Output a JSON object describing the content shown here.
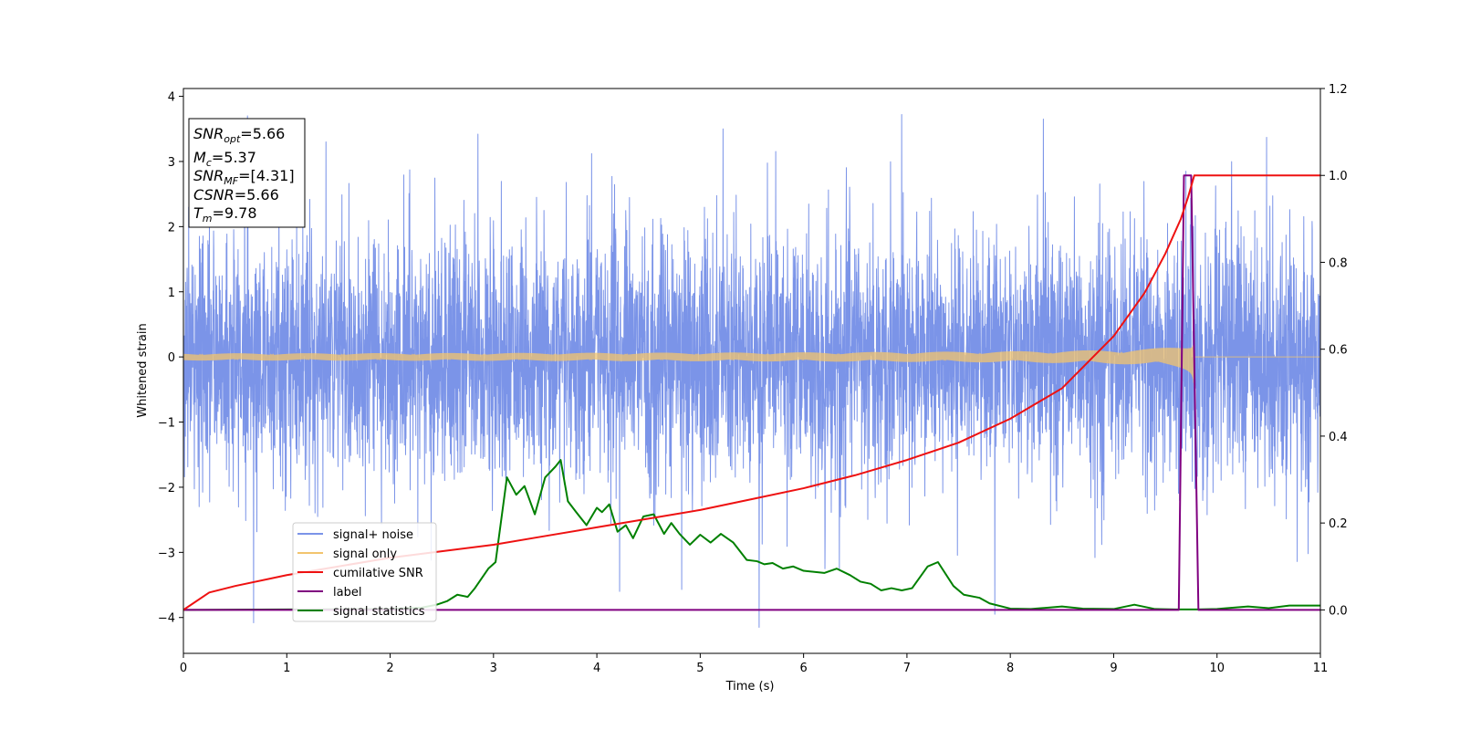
{
  "chart_data": {
    "type": "line",
    "title": "",
    "xlabel": "Time (s)",
    "ylabel": "Whitened strain",
    "xlim": [
      0,
      11
    ],
    "ylim": [
      -4.55,
      4.12
    ],
    "y2lim": [
      -0.1,
      1.2
    ],
    "grid": false,
    "x_ticks": [
      "0",
      "1",
      "2",
      "3",
      "4",
      "5",
      "6",
      "7",
      "8",
      "9",
      "10",
      "11"
    ],
    "y_ticks": [
      "4",
      "3",
      "2",
      "1",
      "0",
      "−1",
      "−2",
      "−3",
      "−4"
    ],
    "y2_ticks": [
      "1.2",
      "1.0",
      "0.8",
      "0.6",
      "0.4",
      "0.2",
      "0.0"
    ],
    "annotation": {
      "snr_opt": {
        "name": "SNR",
        "sub": "opt",
        "value": "=5.66"
      },
      "mc": {
        "name": "M",
        "sub": "c",
        "value": "=5.37"
      },
      "snr_mf": {
        "name": "SNR",
        "sub": "MF",
        "value": "=[4.31]"
      },
      "csnr": {
        "name": "CSNR",
        "sub": "",
        "value": "=5.66"
      },
      "tm": {
        "name": "T",
        "sub": "m",
        "value": "=9.78"
      }
    },
    "legend_location": "lower-left",
    "series": [
      {
        "name": "signal+ noise",
        "color": "#7b94e8",
        "axis": "left",
        "kind": "noise",
        "sigma": 0.95,
        "extreme_peaks": [
          [
            0.05,
            2.3
          ],
          [
            0.62,
            3.7
          ],
          [
            0.68,
            -4.08
          ],
          [
            1.38,
            3.3
          ],
          [
            2.85,
            3.42
          ],
          [
            3.95,
            3.12
          ],
          [
            4.22,
            -3.6
          ],
          [
            4.82,
            -3.57
          ],
          [
            5.22,
            3.5
          ],
          [
            5.57,
            -4.15
          ],
          [
            6.95,
            3.72
          ],
          [
            7.85,
            -3.95
          ],
          [
            8.32,
            3.65
          ],
          [
            9.7,
            2.85
          ],
          [
            10.48,
            3.37
          ]
        ]
      },
      {
        "name": "signal only",
        "color": "#f2c46e",
        "axis": "left",
        "kind": "chirp",
        "t_merge": 9.78
      },
      {
        "name": "cumilative SNR",
        "color": "#ee1111",
        "axis": "right",
        "x": [
          0,
          0.25,
          0.5,
          1,
          1.5,
          2,
          2.5,
          3,
          3.5,
          4,
          4.5,
          5,
          5.5,
          6,
          6.5,
          7,
          7.5,
          8,
          8.5,
          9,
          9.3,
          9.5,
          9.65,
          9.72,
          9.78,
          11
        ],
        "y": [
          0.0,
          0.04,
          0.055,
          0.08,
          0.1,
          0.12,
          0.135,
          0.15,
          0.17,
          0.19,
          0.21,
          0.23,
          0.255,
          0.28,
          0.31,
          0.345,
          0.385,
          0.44,
          0.51,
          0.63,
          0.73,
          0.82,
          0.9,
          0.95,
          1.0,
          1.0
        ]
      },
      {
        "name": "label",
        "color": "#800080",
        "axis": "right",
        "x": [
          0,
          9.63,
          9.68,
          9.75,
          9.82,
          11
        ],
        "y": [
          0,
          0,
          1,
          1,
          0,
          0
        ]
      },
      {
        "name": "signal statistics",
        "color": "#008000",
        "axis": "right",
        "x": [
          0,
          1,
          2,
          2.3,
          2.45,
          2.55,
          2.65,
          2.75,
          2.82,
          2.95,
          3.02,
          3.13,
          3.22,
          3.3,
          3.4,
          3.5,
          3.6,
          3.65,
          3.72,
          3.8,
          3.9,
          4.0,
          4.05,
          4.12,
          4.2,
          4.28,
          4.35,
          4.45,
          4.55,
          4.65,
          4.72,
          4.8,
          4.9,
          5.0,
          5.1,
          5.2,
          5.32,
          5.45,
          5.55,
          5.62,
          5.7,
          5.8,
          5.9,
          6.0,
          6.2,
          6.32,
          6.45,
          6.55,
          6.65,
          6.75,
          6.85,
          6.95,
          7.05,
          7.2,
          7.3,
          7.45,
          7.55,
          7.7,
          7.8,
          8.0,
          8.2,
          8.5,
          8.7,
          9.0,
          9.2,
          9.4,
          9.6,
          9.8,
          10.0,
          10.3,
          10.5,
          10.7,
          11
        ],
        "y": [
          0,
          0.001,
          0.002,
          0.005,
          0.012,
          0.02,
          0.035,
          0.03,
          0.05,
          0.095,
          0.11,
          0.305,
          0.265,
          0.285,
          0.22,
          0.305,
          0.33,
          0.345,
          0.25,
          0.225,
          0.195,
          0.235,
          0.225,
          0.243,
          0.18,
          0.195,
          0.165,
          0.215,
          0.22,
          0.175,
          0.2,
          0.175,
          0.15,
          0.173,
          0.155,
          0.175,
          0.155,
          0.115,
          0.112,
          0.105,
          0.108,
          0.095,
          0.1,
          0.09,
          0.085,
          0.095,
          0.08,
          0.065,
          0.06,
          0.045,
          0.05,
          0.045,
          0.05,
          0.1,
          0.11,
          0.055,
          0.035,
          0.028,
          0.015,
          0.003,
          0.002,
          0.008,
          0.003,
          0.002,
          0.012,
          0.002,
          0.001,
          0.001,
          0.002,
          0.008,
          0.004,
          0.01,
          0.01
        ]
      }
    ]
  }
}
